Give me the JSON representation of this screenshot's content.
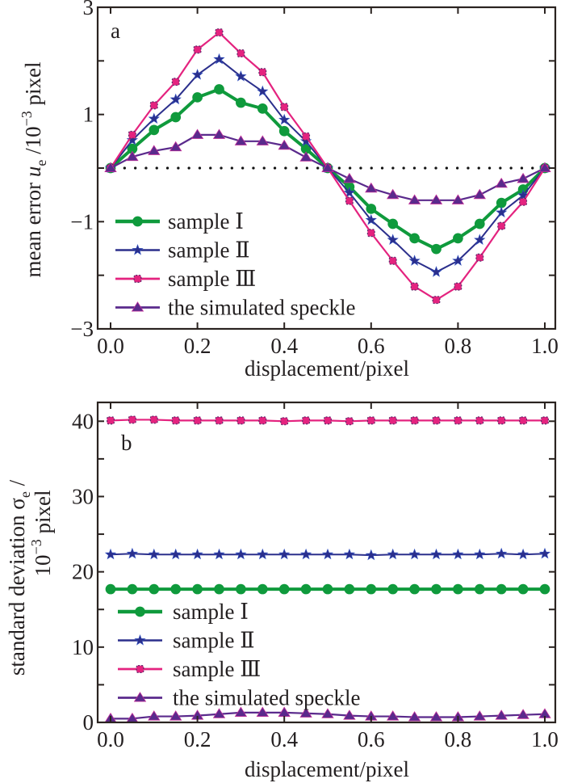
{
  "chart_data": [
    {
      "type": "line",
      "panel_label": "a",
      "title": "",
      "xlabel": "displacement/pixel",
      "ylabel": {
        "prefix": "mean error ",
        "symbol": "u",
        "subscript": "e",
        "unit_prefix": " /10",
        "exponent": "−3",
        "unit_suffix": " pixel"
      },
      "xlim": [
        0.0,
        1.0
      ],
      "ylim": [
        -3,
        3
      ],
      "x_ticks": [
        0.0,
        0.2,
        0.4,
        0.6,
        0.8,
        1.0
      ],
      "x_tick_labels": [
        "0.0",
        "0.2",
        "0.4",
        "0.6",
        "0.8",
        "1.0"
      ],
      "y_ticks": [
        -3,
        -2,
        -1,
        0,
        1,
        2,
        3
      ],
      "y_tick_labels": [
        {
          "value": 3,
          "label": "3"
        },
        {
          "value": 1,
          "label": "1"
        },
        {
          "value": -1,
          "label": "−1"
        },
        {
          "value": -3,
          "label": "−3"
        }
      ],
      "reference_line": {
        "y": 0,
        "style": "dotted"
      },
      "legend_position": "lower-left",
      "x": [
        0.0,
        0.05,
        0.1,
        0.15,
        0.2,
        0.25,
        0.3,
        0.35,
        0.4,
        0.45,
        0.5,
        0.55,
        0.6,
        0.65,
        0.7,
        0.75,
        0.8,
        0.85,
        0.9,
        0.95,
        1.0
      ],
      "series": [
        {
          "name": "sample Ⅰ",
          "legend_label": "sample  Ⅰ",
          "color": "#0f9a3c",
          "marker": "circle",
          "values": [
            0,
            0.36,
            0.71,
            0.95,
            1.32,
            1.47,
            1.22,
            1.11,
            0.69,
            0.36,
            0,
            -0.35,
            -0.76,
            -1.04,
            -1.31,
            -1.51,
            -1.31,
            -1.04,
            -0.65,
            -0.4,
            0
          ]
        },
        {
          "name": "sample Ⅱ",
          "legend_label": "sample  Ⅱ",
          "color": "#2b2f8c",
          "marker": "star",
          "values": [
            0,
            0.52,
            0.92,
            1.28,
            1.74,
            2.03,
            1.71,
            1.43,
            0.9,
            0.5,
            0,
            -0.46,
            -0.97,
            -1.34,
            -1.73,
            -1.94,
            -1.73,
            -1.34,
            -0.83,
            -0.51,
            0
          ]
        },
        {
          "name": "sample Ⅲ",
          "legend_label": "sample Ⅲ",
          "color": "#e4237f",
          "marker": "square",
          "values": [
            0,
            0.62,
            1.17,
            1.61,
            2.21,
            2.53,
            2.14,
            1.79,
            1.14,
            0.59,
            0,
            -0.61,
            -1.21,
            -1.73,
            -2.21,
            -2.46,
            -2.21,
            -1.67,
            -1.08,
            -0.63,
            0
          ]
        },
        {
          "name": "the simulated speckle",
          "legend_label": "the simulated speckle",
          "color": "#5a2a8c",
          "marker": "triangle",
          "values": [
            0,
            0.21,
            0.32,
            0.39,
            0.62,
            0.62,
            0.5,
            0.5,
            0.42,
            0.2,
            0,
            -0.2,
            -0.38,
            -0.5,
            -0.6,
            -0.6,
            -0.6,
            -0.5,
            -0.29,
            -0.2,
            0
          ]
        }
      ]
    },
    {
      "type": "line",
      "panel_label": "b",
      "title": "",
      "xlabel": "displacement/pixel",
      "ylabel": {
        "line1_prefix": "standard deviation ",
        "symbol": "σ",
        "subscript": "e",
        "line1_suffix": " /",
        "line2_base": "10",
        "exponent": "−3",
        "line2_suffix": " pixel"
      },
      "xlim": [
        0.0,
        1.0
      ],
      "ylim": [
        0,
        42.5
      ],
      "x_ticks": [
        0.0,
        0.2,
        0.4,
        0.6,
        0.8,
        1.0
      ],
      "x_tick_labels": [
        "0.0",
        "0.2",
        "0.4",
        "0.6",
        "0.8",
        "1.0"
      ],
      "y_ticks": [
        0,
        5,
        10,
        15,
        20,
        25,
        30,
        35,
        40
      ],
      "y_tick_labels": [
        {
          "value": 40,
          "label": "40"
        },
        {
          "value": 30,
          "label": "30"
        },
        {
          "value": 20,
          "label": "20"
        },
        {
          "value": 10,
          "label": "10"
        },
        {
          "value": 0,
          "label": "0"
        }
      ],
      "legend_position": "lower-left",
      "x": [
        0.0,
        0.05,
        0.1,
        0.15,
        0.2,
        0.25,
        0.3,
        0.35,
        0.4,
        0.45,
        0.5,
        0.55,
        0.6,
        0.65,
        0.7,
        0.75,
        0.8,
        0.85,
        0.9,
        0.95,
        1.0
      ],
      "series": [
        {
          "name": "sample Ⅰ",
          "legend_label": "sample  Ⅰ",
          "color": "#0f9a3c",
          "marker": "circle",
          "values": [
            17.7,
            17.7,
            17.7,
            17.7,
            17.7,
            17.7,
            17.7,
            17.7,
            17.7,
            17.7,
            17.7,
            17.7,
            17.7,
            17.7,
            17.7,
            17.7,
            17.7,
            17.7,
            17.7,
            17.7,
            17.7
          ]
        },
        {
          "name": "sample Ⅱ",
          "legend_label": "sample  Ⅱ",
          "color": "#2b2f8c",
          "marker": "star",
          "values": [
            22.3,
            22.4,
            22.3,
            22.3,
            22.3,
            22.3,
            22.3,
            22.3,
            22.3,
            22.3,
            22.3,
            22.3,
            22.2,
            22.3,
            22.3,
            22.3,
            22.3,
            22.3,
            22.4,
            22.3,
            22.4
          ]
        },
        {
          "name": "sample Ⅲ",
          "legend_label": "sample Ⅲ",
          "color": "#e4237f",
          "marker": "square",
          "values": [
            40.1,
            40.2,
            40.2,
            40.1,
            40.1,
            40.1,
            40.1,
            40.1,
            40.0,
            40.1,
            40.1,
            40.0,
            40.1,
            40.1,
            40.1,
            40.1,
            40.1,
            40.1,
            40.1,
            40.1,
            40.1
          ]
        },
        {
          "name": "the simulated speckle",
          "legend_label": "the simulated speckle",
          "color": "#5a2a8c",
          "marker": "triangle",
          "values": [
            0.5,
            0.5,
            0.8,
            0.8,
            0.9,
            1.1,
            1.3,
            1.3,
            1.3,
            1.2,
            1.1,
            0.9,
            0.8,
            0.8,
            0.7,
            0.7,
            0.7,
            0.8,
            0.9,
            1.0,
            1.1
          ]
        }
      ]
    }
  ]
}
